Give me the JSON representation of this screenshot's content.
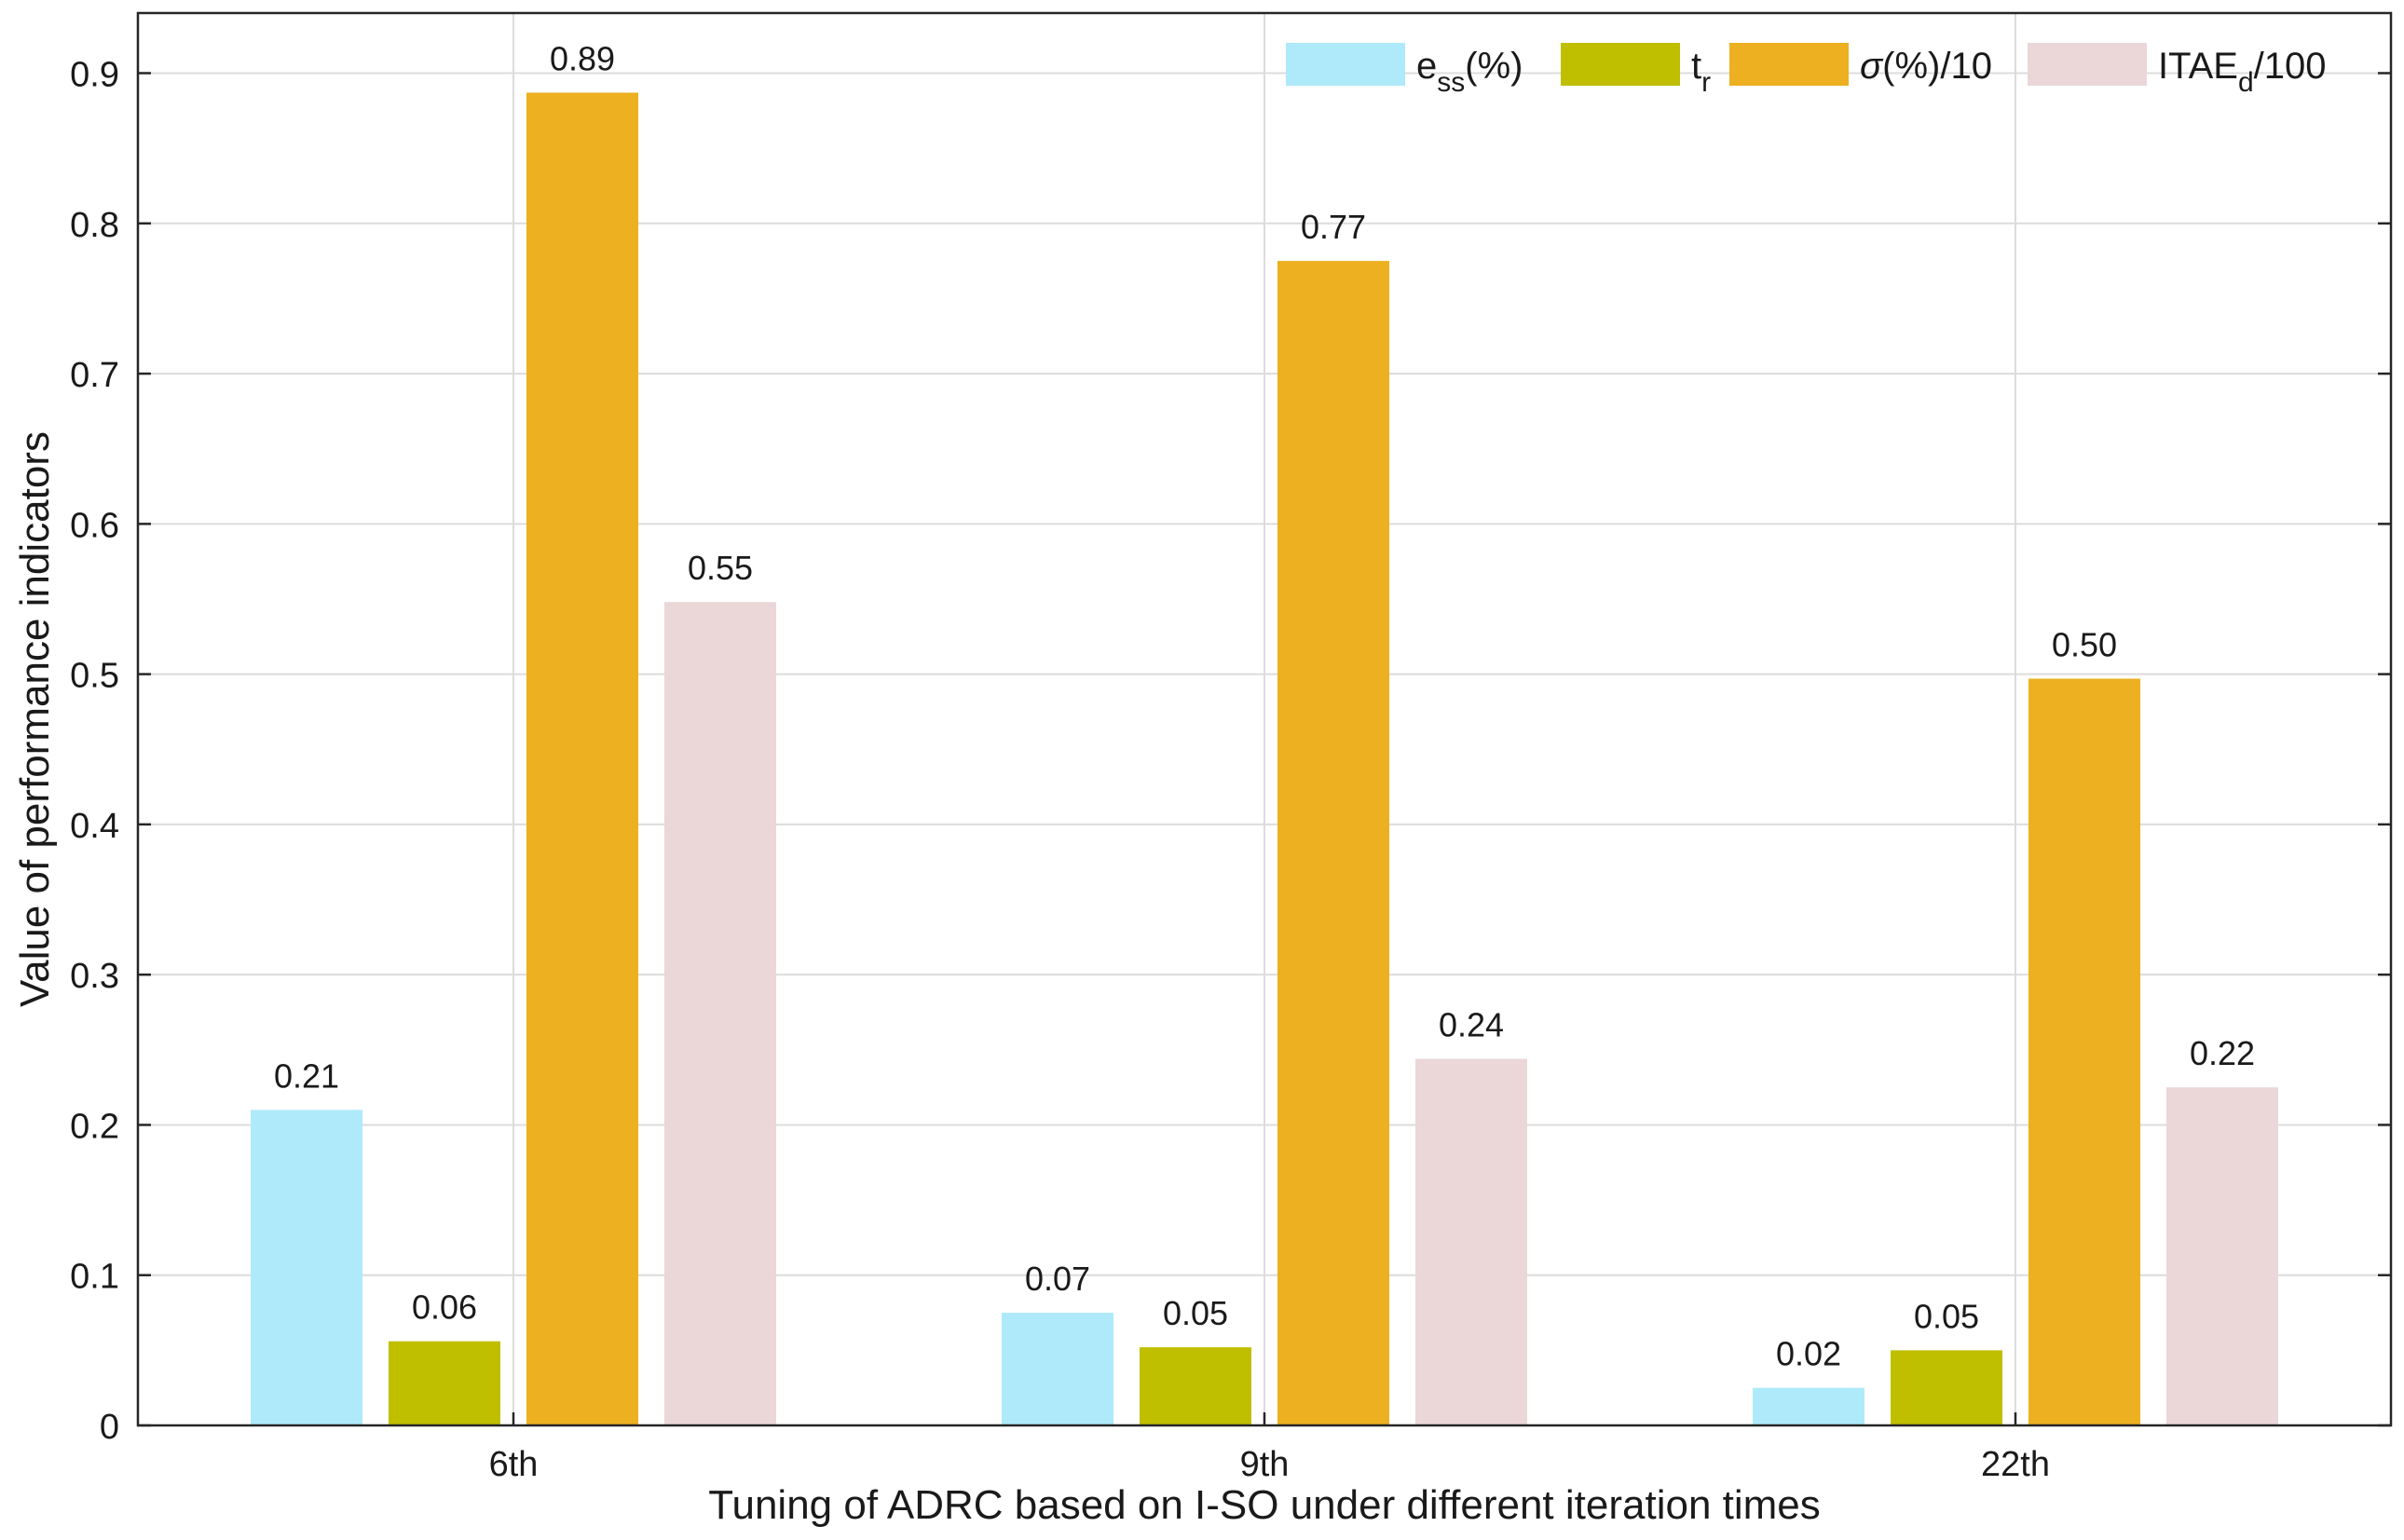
{
  "chart_data": {
    "type": "bar",
    "title": "",
    "xlabel": "Tuning of ADRC based on I-SO under different iteration times",
    "ylabel": "Value of performance indicators",
    "categories": [
      "6th",
      "9th",
      "22th"
    ],
    "ylim": [
      0,
      0.94
    ],
    "yticks": [
      0,
      0.1,
      0.2,
      0.3,
      0.4,
      0.5,
      0.6,
      0.7,
      0.8,
      0.9
    ],
    "ytick_labels": [
      "0",
      "0.1",
      "0.2",
      "0.3",
      "0.4",
      "0.5",
      "0.6",
      "0.7",
      "0.8",
      "0.9"
    ],
    "grid": true,
    "legend_position": "top-right",
    "series": [
      {
        "name": "ess(%)",
        "legend": {
          "base": "e",
          "sub": "ss",
          "rest": "(%)"
        },
        "color": "#aeeafa",
        "values": [
          0.21,
          0.075,
          0.025
        ],
        "labels": [
          "0.21",
          "0.07",
          "0.02"
        ]
      },
      {
        "name": "tr",
        "legend": {
          "base": "t",
          "sub": "r",
          "rest": ""
        },
        "color": "#bfbf00",
        "values": [
          0.056,
          0.052,
          0.05
        ],
        "labels": [
          "0.06",
          "0.05",
          "0.05"
        ]
      },
      {
        "name": "σ(%)/10",
        "legend": {
          "sigma": "σ",
          "rest": "(%)/10"
        },
        "color": "#ecb020",
        "values": [
          0.887,
          0.775,
          0.497
        ],
        "labels": [
          "0.89",
          "0.77",
          "0.50"
        ]
      },
      {
        "name": "ITAEd/100",
        "legend": {
          "base": "ITAE",
          "sub": "d",
          "rest": "/100"
        },
        "color": "#ebd7d8",
        "values": [
          0.548,
          0.244,
          0.225
        ],
        "labels": [
          "0.55",
          "0.24",
          "0.22"
        ]
      }
    ]
  }
}
